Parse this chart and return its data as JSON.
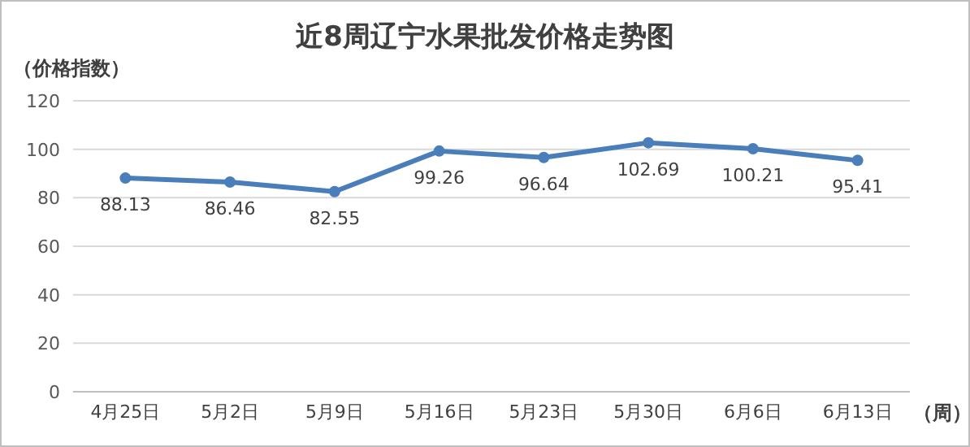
{
  "chart_data": {
    "type": "line",
    "title": "近8周辽宁水果批发价格走势图",
    "ylabel": "（价格指数）",
    "xlabel": "（周）",
    "categories": [
      "4月25日",
      "5月2日",
      "5月9日",
      "5月16日",
      "5月23日",
      "5月30日",
      "6月6日",
      "6月13日"
    ],
    "values": [
      88.13,
      86.46,
      82.55,
      99.26,
      96.64,
      102.69,
      100.21,
      95.41
    ],
    "color": "#4a7ebb",
    "ylim": [
      0,
      120
    ],
    "yticks": [
      0,
      20,
      40,
      60,
      80,
      100,
      120
    ],
    "grid": "y",
    "marker": "circle",
    "data_labels": true
  }
}
